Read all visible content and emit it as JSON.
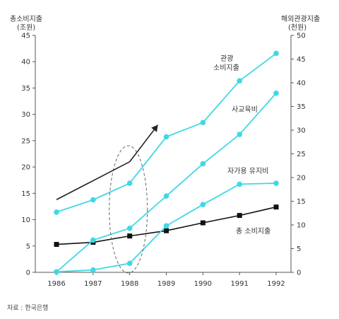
{
  "chart_data": {
    "type": "line",
    "categories": [
      "1986",
      "1987",
      "1988",
      "1989",
      "1990",
      "1991",
      "1992"
    ],
    "left_axis": {
      "title_line1": "총소비지출",
      "title_line2": "(조원)",
      "ylim": [
        0,
        45
      ],
      "ticks": [
        "0",
        "5",
        "10",
        "15",
        "20",
        "25",
        "30",
        "35",
        "40",
        "45"
      ]
    },
    "right_axis": {
      "title_line1": "해외관광지출",
      "title_line2": "(천원)",
      "ylim": [
        0,
        50
      ],
      "ticks": [
        "0",
        "5",
        "10",
        "15",
        "20",
        "25",
        "30",
        "35",
        "40",
        "45",
        "50"
      ]
    },
    "series": [
      {
        "name": "총 소비지출",
        "axis": "left",
        "color": "#111111",
        "marker": "square",
        "values": [
          5.3,
          5.7,
          6.9,
          7.9,
          9.4,
          10.8,
          12.4
        ]
      },
      {
        "name": "",
        "axis": "right",
        "color": "#3fd8e6",
        "marker": "circle",
        "values": [
          0.1,
          0.5,
          1.9,
          9.8,
          14.3,
          18.6,
          18.8
        ]
      },
      {
        "name": "",
        "axis": "right",
        "color": "#3fd8e6",
        "marker": "circle",
        "values": [
          0.1,
          6.8,
          9.3,
          16.1,
          22.9,
          29.1,
          37.8
        ]
      },
      {
        "name": "",
        "axis": "right",
        "color": "#3fd8e6",
        "marker": "circle",
        "values": [
          12.7,
          15.3,
          18.8,
          28.6,
          31.6,
          40.4,
          46.2
        ]
      }
    ],
    "annotations": {
      "label_top_line1": "관광",
      "label_top_line2": "소비지출",
      "label_mid": "사교육비",
      "label_low": "자가용 유지비",
      "label_total": "총 소비지출"
    },
    "trend_arrow": {
      "from_category": "1986",
      "from_value": 13.8,
      "via_category": "1988",
      "via_value": 21.0,
      "to_category": "1989",
      "to_value": 28.0
    },
    "highlight_category": "1988",
    "source": "자료 : 한국은행"
  }
}
